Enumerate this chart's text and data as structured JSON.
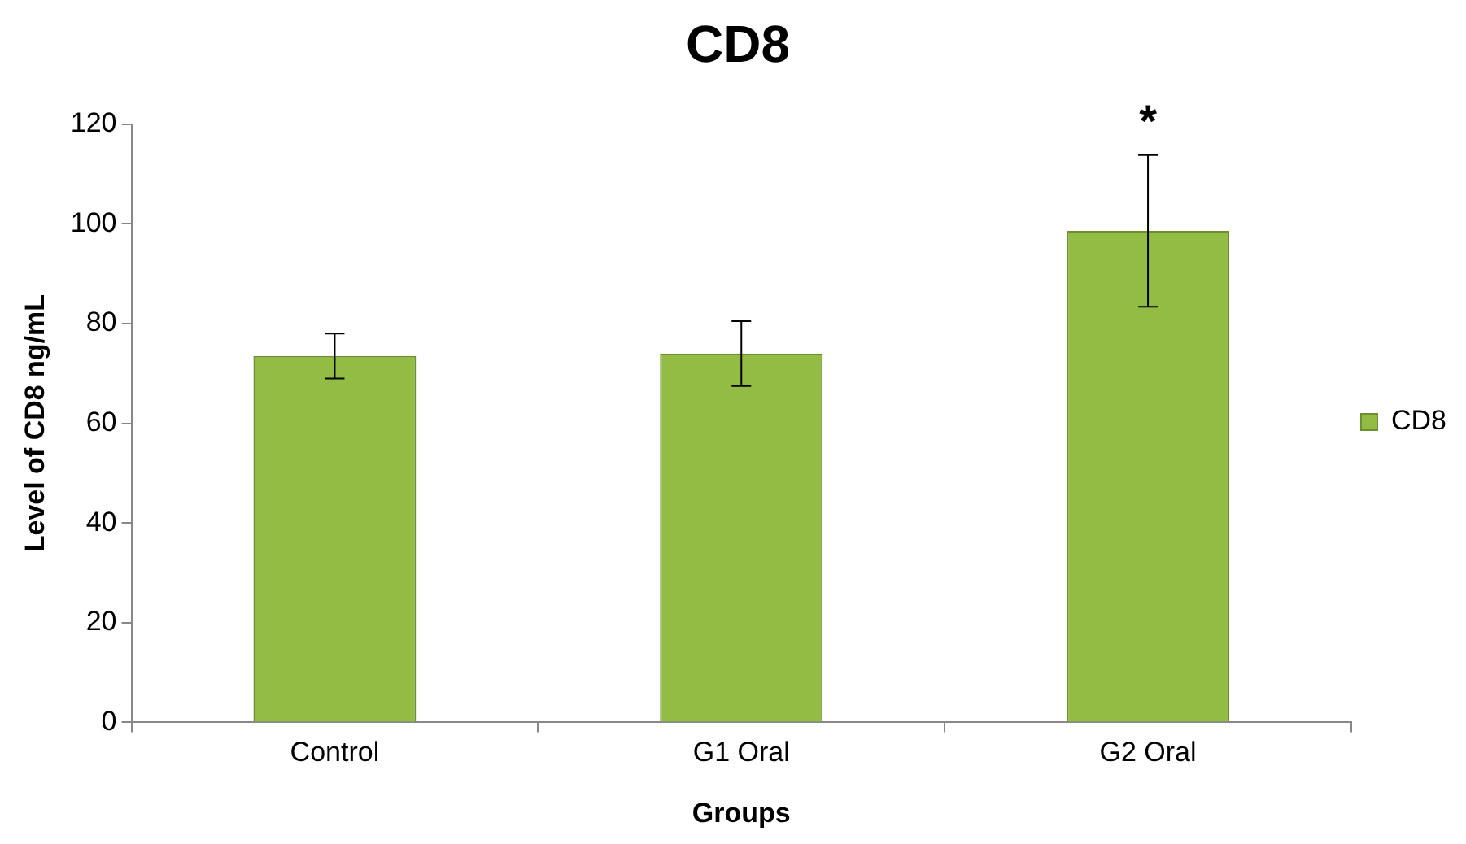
{
  "chart_data": {
    "type": "bar",
    "title": "CD8",
    "xlabel": "Groups",
    "ylabel": "Level of CD8 ng/mL",
    "categories": [
      "Control",
      "G1 Oral",
      "G2 Oral"
    ],
    "series": [
      {
        "name": "CD8",
        "color": "#92bc43",
        "values": [
          73.5,
          74,
          98.6
        ],
        "errors": [
          4.5,
          6.5,
          15.2
        ]
      }
    ],
    "ylim": [
      0,
      120
    ],
    "yticks": [
      0,
      20,
      40,
      60,
      80,
      100,
      120
    ],
    "grid": false,
    "legend": "right",
    "annotations": [
      "*"
    ]
  }
}
